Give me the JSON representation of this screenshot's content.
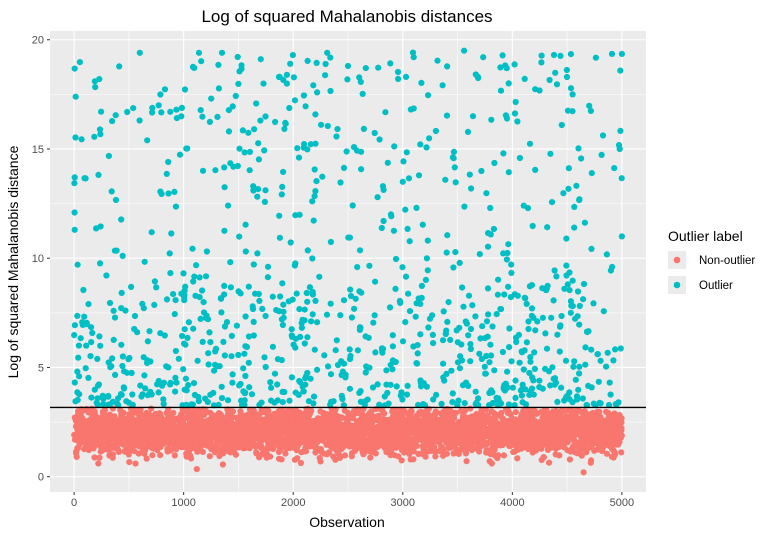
{
  "chart_data": {
    "type": "scatter",
    "title": "Log of squared Mahalanobis distances",
    "xlabel": "Observation",
    "ylabel": "Log of squared Mahalanobis distance",
    "xlim": [
      -220,
      5220
    ],
    "ylim": [
      -0.7,
      20.4
    ],
    "x_ticks": [
      0,
      1000,
      2000,
      3000,
      4000,
      5000
    ],
    "y_ticks": [
      0,
      5,
      10,
      15,
      20
    ],
    "x_tick_labels": [
      "0",
      "1000",
      "2000",
      "3000",
      "4000",
      "5000"
    ],
    "y_tick_labels": [
      "0",
      "5",
      "10",
      "15",
      "20"
    ],
    "hline": 3.17,
    "grid": true,
    "legend_position": "right",
    "legend": {
      "title": "Outlier label",
      "entries": [
        {
          "label": "Non-outlier",
          "color": "#f8766d"
        },
        {
          "label": "Outlier",
          "color": "#00bfc4"
        }
      ]
    },
    "series": [
      {
        "name": "Non-outlier",
        "color": "#f8766d",
        "n": 4000,
        "y_range": [
          0.2,
          3.17
        ],
        "notable_points": [
          {
            "x": 1120,
            "y": 0.35
          },
          {
            "x": 4650,
            "y": 0.2
          },
          {
            "x": 560,
            "y": 0.6
          }
        ]
      },
      {
        "name": "Outlier",
        "color": "#00bfc4",
        "n": 1000,
        "y_range": [
          3.17,
          19.5
        ],
        "notable_points": [
          {
            "x": 5,
            "y": 13.7
          },
          {
            "x": 5,
            "y": 11.3
          },
          {
            "x": 190,
            "y": 18.1
          },
          {
            "x": 230,
            "y": 18.2
          },
          {
            "x": 600,
            "y": 19.4
          },
          {
            "x": 1140,
            "y": 19.4
          },
          {
            "x": 1350,
            "y": 19.4
          },
          {
            "x": 2310,
            "y": 19.4
          },
          {
            "x": 2500,
            "y": 18.8
          },
          {
            "x": 3100,
            "y": 19.2
          },
          {
            "x": 3560,
            "y": 19.5
          },
          {
            "x": 4380,
            "y": 19.3
          },
          {
            "x": 4910,
            "y": 19.35
          },
          {
            "x": 5000,
            "y": 19.35
          },
          {
            "x": 4980,
            "y": 15.0
          },
          {
            "x": 5000,
            "y": 11.0
          },
          {
            "x": 3000,
            "y": 13.5
          },
          {
            "x": 1700,
            "y": 16.3
          },
          {
            "x": 4550,
            "y": 17.5
          }
        ]
      }
    ]
  }
}
